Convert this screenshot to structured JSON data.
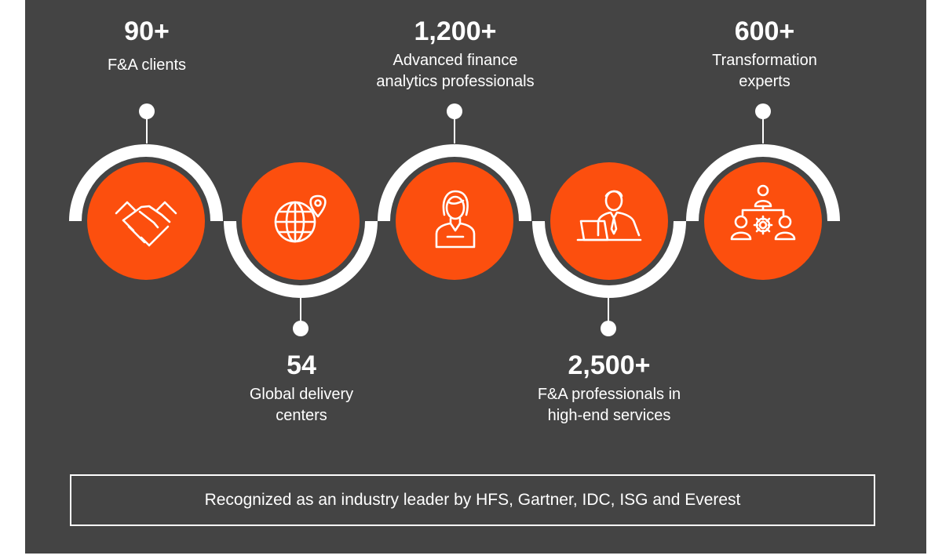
{
  "colors": {
    "panel": "#444444",
    "accent": "#fc4f0e",
    "ring": "#ffffff"
  },
  "stats": [
    {
      "number": "90+",
      "label_line1": "F&A clients",
      "label_line2": "",
      "icon": "handshake-icon"
    },
    {
      "number": "54",
      "label_line1": "Global delivery",
      "label_line2": "centers",
      "icon": "globe-location-icon"
    },
    {
      "number": "1,200+",
      "label_line1": "Advanced finance",
      "label_line2": "analytics professionals",
      "icon": "businesswoman-icon"
    },
    {
      "number": "2,500+",
      "label_line1": "F&A professionals in",
      "label_line2": "high-end services",
      "icon": "professional-laptop-icon"
    },
    {
      "number": "600+",
      "label_line1": "Transformation",
      "label_line2": "experts",
      "icon": "team-gear-icon"
    }
  ],
  "footer": {
    "text": "Recognized as an industry leader by HFS, Gartner, IDC, ISG and Everest"
  }
}
